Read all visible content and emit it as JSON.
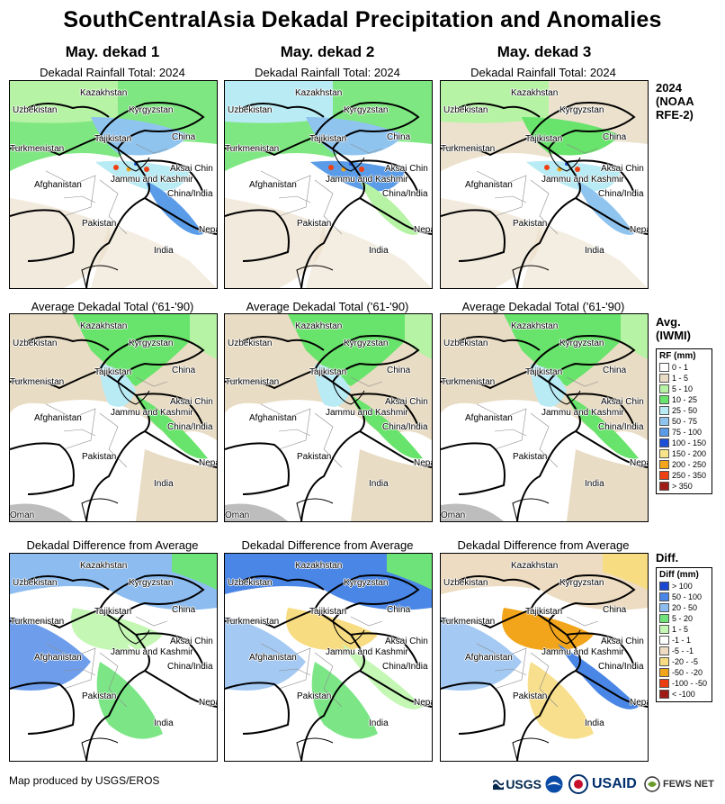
{
  "title": "SouthCentralAsia Dekadal Precipitation and Anomalies",
  "columns": [
    {
      "header": "May. dekad 1"
    },
    {
      "header": "May. dekad 2"
    },
    {
      "header": "May. dekad 3"
    }
  ],
  "panel_titles": {
    "rainfall": "Dekadal Rainfall Total: 2024",
    "average": "Average Dekadal Total ('61-'90)",
    "difference": "Dekadal Difference from Average"
  },
  "map_labels": {
    "kazakhstan": "Kazakhstan",
    "uzbekistan": "Uzbekistan",
    "kyrgyzstan": "Kyrgyzstan",
    "tajikistan": "Tajikistan",
    "china": "China",
    "turkmenistan": "Turkmenistan",
    "aksai_chin": "Aksai Chin",
    "jammu_kashmir": "Jammu and Kashmir",
    "china_india": "China/India",
    "afghanistan": "Afghanistan",
    "pakistan": "Pakistan",
    "nepal": "Nepal",
    "india": "India",
    "oman": "Oman"
  },
  "row_labels": {
    "rainfall": [
      "2024",
      "(NOAA",
      "RFE-2)"
    ],
    "average": [
      "Avg.",
      "(IWMI)"
    ],
    "difference": [
      "Diff."
    ]
  },
  "rf_legend": {
    "title": "RF (mm)",
    "items": [
      {
        "label": "0 - 1",
        "color": "#ffffff"
      },
      {
        "label": "1 - 5",
        "color": "#e9dcc4"
      },
      {
        "label": "5 - 10",
        "color": "#b6f3a5"
      },
      {
        "label": "10 - 25",
        "color": "#68e36b"
      },
      {
        "label": "25 - 50",
        "color": "#b8ebf4"
      },
      {
        "label": "50 - 75",
        "color": "#8fc4ef"
      },
      {
        "label": "75 - 100",
        "color": "#5b9ce8"
      },
      {
        "label": "100 - 150",
        "color": "#1e4ed6"
      },
      {
        "label": "150 - 200",
        "color": "#f7e48a"
      },
      {
        "label": "200 - 250",
        "color": "#f3a51b"
      },
      {
        "label": "250 - 350",
        "color": "#ee4012"
      },
      {
        "label": "> 350",
        "color": "#9e1c14"
      }
    ]
  },
  "diff_legend": {
    "title": "Diff (mm)",
    "items": [
      {
        "label": "> 100",
        "color": "#1b47d3"
      },
      {
        "label": "50 - 100",
        "color": "#4a86e6"
      },
      {
        "label": "20 - 50",
        "color": "#8dbcf0"
      },
      {
        "label": "5 - 20",
        "color": "#6ee37a"
      },
      {
        "label": "1 - 5",
        "color": "#c4f7b4"
      },
      {
        "label": "-1 - 1",
        "color": "#ffffff"
      },
      {
        "label": "-5 - -1",
        "color": "#eddcc2"
      },
      {
        "label": "-20 - -5",
        "color": "#f7dc82"
      },
      {
        "label": "-50 - -20",
        "color": "#f2a41a"
      },
      {
        "label": "-100 - -50",
        "color": "#ec3c12"
      },
      {
        "label": "< -100",
        "color": "#a01a14"
      }
    ]
  },
  "footer": {
    "credit": "Map produced by USGS/EROS",
    "logos": [
      "USGS",
      "NOAA",
      "USAID",
      "FEWS NET"
    ]
  },
  "colors": {
    "ocean": "#bdbdbd",
    "border": "#000000",
    "district": "#8c8c8c"
  }
}
